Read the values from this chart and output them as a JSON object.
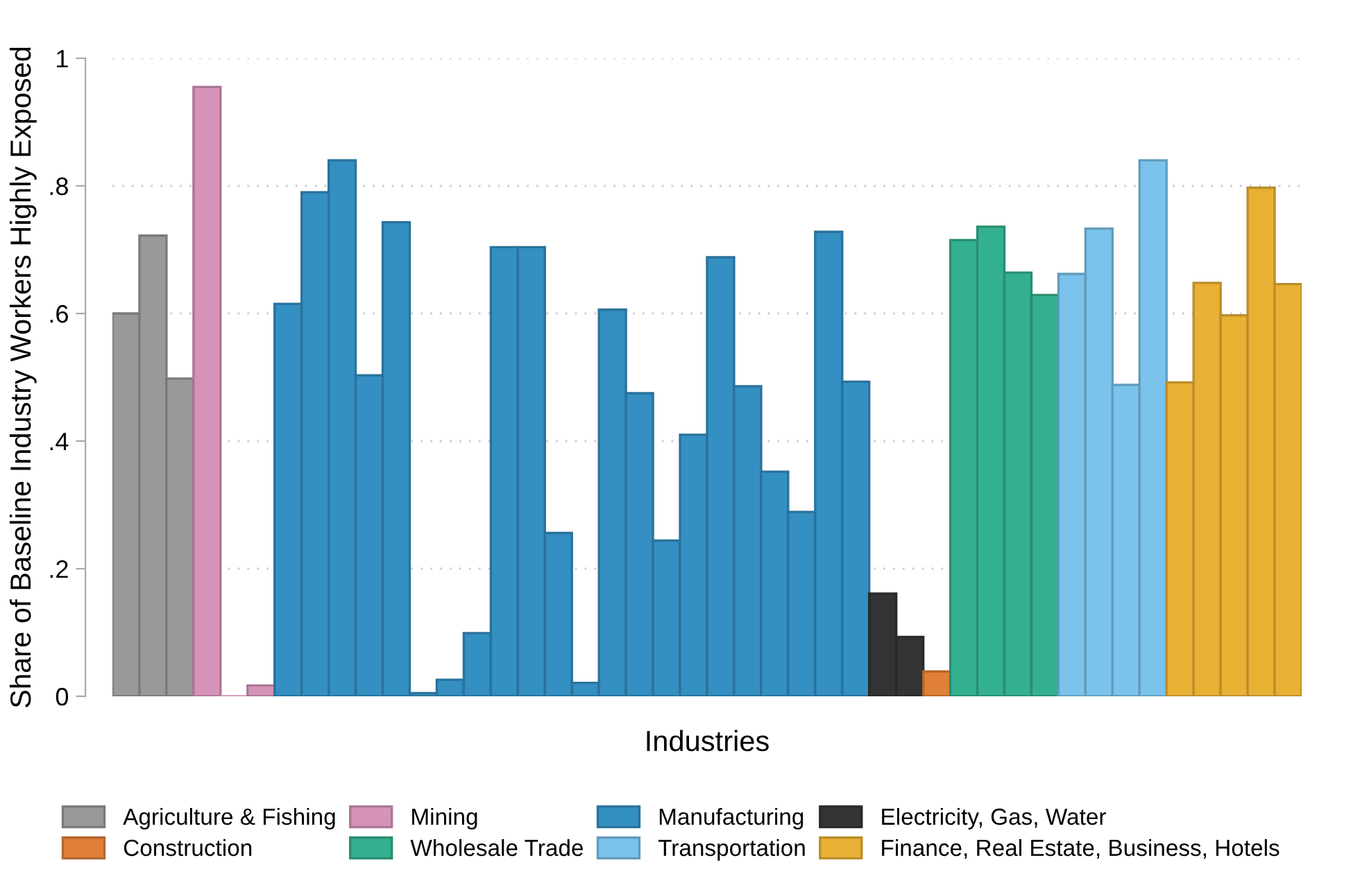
{
  "chart_data": {
    "type": "bar",
    "xlabel": "Industries",
    "ylabel": "Share of Baseline Industry Workers Highly Exposed",
    "categories": [
      null,
      null,
      null,
      null,
      null,
      null,
      null,
      null,
      null,
      null,
      null,
      null,
      null,
      null,
      null,
      null,
      null,
      null,
      null,
      null,
      null,
      null,
      null,
      null,
      null,
      null,
      null,
      null,
      null,
      null,
      null,
      null,
      null,
      null,
      null,
      null,
      null,
      null,
      null,
      null,
      null,
      null,
      null,
      null
    ],
    "series": [
      {
        "name": "Agriculture & Fishing",
        "color": "#999999",
        "values": [
          0.6,
          0.722,
          0.498,
          null,
          null,
          null,
          null,
          null,
          null,
          null,
          null,
          null,
          null,
          null,
          null,
          null,
          null,
          null,
          null,
          null,
          null,
          null,
          null,
          null,
          null,
          null,
          null,
          null,
          null,
          null,
          null,
          null,
          null,
          null,
          null,
          null,
          null,
          null,
          null,
          null,
          null,
          null,
          null,
          null
        ]
      },
      {
        "name": "Mining",
        "color": "#d593b9",
        "values": [
          null,
          null,
          null,
          0.955,
          0.0,
          0.017,
          null,
          null,
          null,
          null,
          null,
          null,
          null,
          null,
          null,
          null,
          null,
          null,
          null,
          null,
          null,
          null,
          null,
          null,
          null,
          null,
          null,
          null,
          null,
          null,
          null,
          null,
          null,
          null,
          null,
          null,
          null,
          null,
          null,
          null,
          null,
          null,
          null,
          null
        ]
      },
      {
        "name": "Manufacturing",
        "color": "#348fc2",
        "values": [
          null,
          null,
          null,
          null,
          null,
          null,
          0.615,
          0.79,
          0.84,
          0.503,
          0.743,
          0.005,
          0.026,
          0.099,
          0.704,
          0.704,
          0.256,
          0.021,
          0.606,
          0.475,
          0.244,
          0.41,
          0.688,
          0.486,
          0.352,
          0.289,
          0.728,
          0.493,
          null,
          null,
          null,
          null,
          null,
          null,
          null,
          null,
          null,
          null,
          null,
          null,
          null,
          null,
          null,
          null
        ]
      },
      {
        "name": "Electricity, Gas, Water",
        "color": "#333333",
        "values": [
          null,
          null,
          null,
          null,
          null,
          null,
          null,
          null,
          null,
          null,
          null,
          null,
          null,
          null,
          null,
          null,
          null,
          null,
          null,
          null,
          null,
          null,
          null,
          null,
          null,
          null,
          null,
          null,
          0.161,
          0.093,
          null,
          null,
          null,
          null,
          null,
          null,
          null,
          null,
          null,
          null,
          null,
          null,
          null,
          null
        ]
      },
      {
        "name": "Construction",
        "color": "#e07f38",
        "values": [
          null,
          null,
          null,
          null,
          null,
          null,
          null,
          null,
          null,
          null,
          null,
          null,
          null,
          null,
          null,
          null,
          null,
          null,
          null,
          null,
          null,
          null,
          null,
          null,
          null,
          null,
          null,
          null,
          null,
          null,
          0.039,
          null,
          null,
          null,
          null,
          null,
          null,
          null,
          null,
          null,
          null,
          null,
          null,
          null
        ]
      },
      {
        "name": "Wholesale Trade",
        "color": "#33b08f",
        "values": [
          null,
          null,
          null,
          null,
          null,
          null,
          null,
          null,
          null,
          null,
          null,
          null,
          null,
          null,
          null,
          null,
          null,
          null,
          null,
          null,
          null,
          null,
          null,
          null,
          null,
          null,
          null,
          null,
          null,
          null,
          null,
          0.715,
          0.736,
          0.664,
          0.629,
          null,
          null,
          null,
          null,
          null,
          null,
          null,
          null,
          null
        ]
      },
      {
        "name": "Transportation",
        "color": "#7ac3ec",
        "values": [
          null,
          null,
          null,
          null,
          null,
          null,
          null,
          null,
          null,
          null,
          null,
          null,
          null,
          null,
          null,
          null,
          null,
          null,
          null,
          null,
          null,
          null,
          null,
          null,
          null,
          null,
          null,
          null,
          null,
          null,
          null,
          null,
          null,
          null,
          null,
          0.662,
          0.733,
          0.488,
          0.84,
          null,
          null,
          null,
          null,
          null
        ]
      },
      {
        "name": "Finance, Real Estate, Business, Hotels",
        "color": "#e9b134",
        "values": [
          null,
          null,
          null,
          null,
          null,
          null,
          null,
          null,
          null,
          null,
          null,
          null,
          null,
          null,
          null,
          null,
          null,
          null,
          null,
          null,
          null,
          null,
          null,
          null,
          null,
          null,
          null,
          null,
          null,
          null,
          null,
          null,
          null,
          null,
          null,
          null,
          null,
          null,
          null,
          0.492,
          0.648,
          0.597,
          0.797,
          0.646
        ]
      }
    ],
    "ylim": [
      0,
      1
    ],
    "yticks": [
      0,
      {
        "value": 0.2,
        "label": ".2"
      },
      {
        "value": 0.4,
        "label": ".4"
      },
      {
        "value": 0.6,
        "label": ".6"
      },
      {
        "value": 0.8,
        "label": ".8"
      },
      1
    ],
    "grid": "y",
    "legend": "bottom"
  }
}
